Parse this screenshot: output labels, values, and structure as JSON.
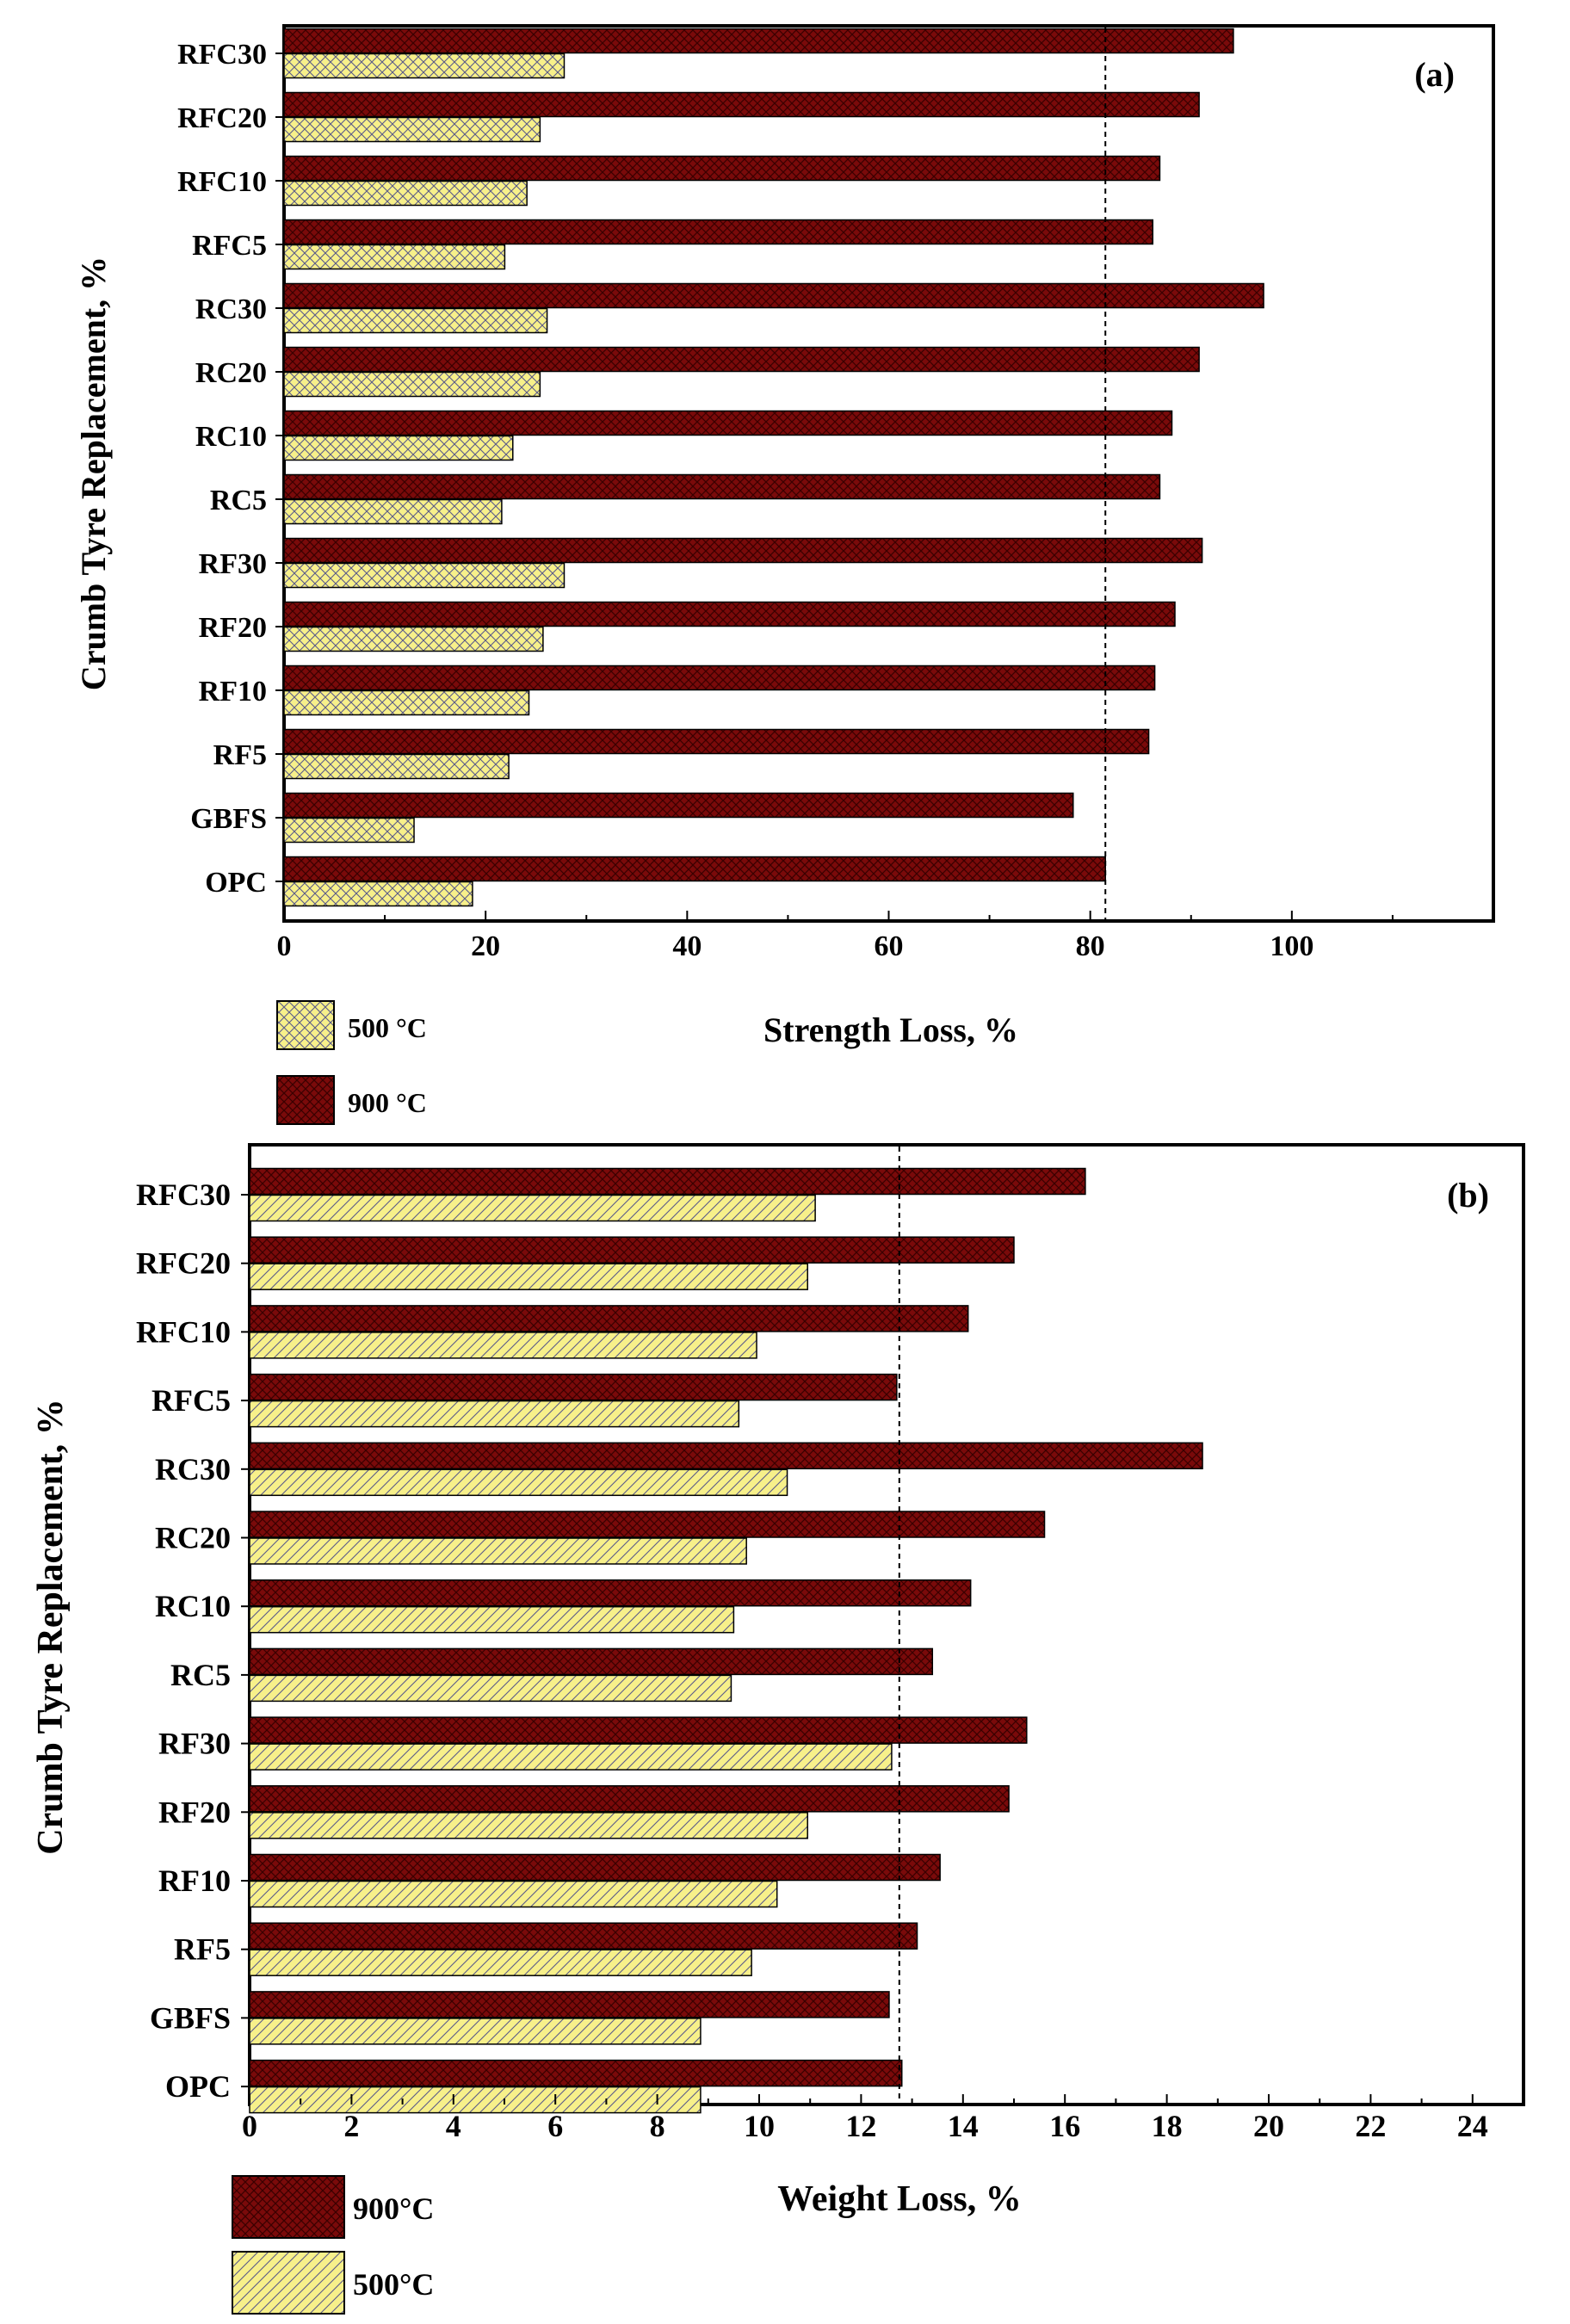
{
  "colors": {
    "hot": "#7a0a0a",
    "warm": "#f7f08a",
    "hot_hatch": "#3a0000",
    "warm_hatch": "#5a5a8a"
  },
  "chart_data": [
    {
      "type": "bar",
      "orientation": "horizontal",
      "panel_label": "(a)",
      "xlabel": "Strength Loss, %",
      "ylabel": "Crumb Tyre Replacement, %",
      "xlim": [
        0,
        120
      ],
      "xticks": [
        0,
        20,
        40,
        60,
        80,
        100
      ],
      "reference_line": 81.5,
      "categories": [
        "RFC30",
        "RFC20",
        "RFC10",
        "RFC5",
        "RC30",
        "RC20",
        "RC10",
        "RC5",
        "RF30",
        "RF20",
        "RF10",
        "RF5",
        "GBFS",
        "OPC"
      ],
      "series": [
        {
          "name": "900 °C",
          "key": "hot",
          "pattern": "cross",
          "values": [
            94.2,
            90.8,
            86.9,
            86.2,
            97.2,
            90.8,
            88.1,
            86.9,
            91.1,
            88.4,
            86.4,
            85.8,
            78.3,
            81.5
          ]
        },
        {
          "name": "500 °C",
          "key": "warm",
          "pattern": "cross",
          "values": [
            27.8,
            25.4,
            24.1,
            21.9,
            26.1,
            25.4,
            22.7,
            21.6,
            27.8,
            25.7,
            24.3,
            22.3,
            12.9,
            18.7
          ]
        }
      ],
      "legend_order": [
        "500 °C",
        "900 °C"
      ]
    },
    {
      "type": "bar",
      "orientation": "horizontal",
      "panel_label": "(b)",
      "xlabel": "Weight Loss, %",
      "ylabel": "Crumb Tyre Replacement, %",
      "xlim": [
        0,
        25
      ],
      "xticks": [
        0,
        2,
        4,
        6,
        8,
        10,
        12,
        14,
        16,
        18,
        20,
        22,
        24
      ],
      "reference_line": 12.75,
      "categories": [
        "RFC30",
        "RFC20",
        "RFC10",
        "RFC5",
        "RC30",
        "RC20",
        "RC10",
        "RC5",
        "RF30",
        "RF20",
        "RF10",
        "RF5",
        "GBFS",
        "OPC"
      ],
      "series": [
        {
          "name": "900°C",
          "key": "hot",
          "pattern": "cross",
          "values": [
            16.4,
            15.0,
            14.1,
            12.7,
            18.7,
            15.6,
            14.15,
            13.4,
            15.25,
            14.9,
            13.55,
            13.1,
            12.55,
            12.8
          ]
        },
        {
          "name": "500°C",
          "key": "warm",
          "pattern": "diagonal",
          "values": [
            11.1,
            10.95,
            9.95,
            9.6,
            10.55,
            9.75,
            9.5,
            9.45,
            12.6,
            10.95,
            10.35,
            9.85,
            8.85,
            8.85
          ]
        }
      ],
      "legend_order": [
        "900°C",
        "500°C"
      ]
    }
  ]
}
